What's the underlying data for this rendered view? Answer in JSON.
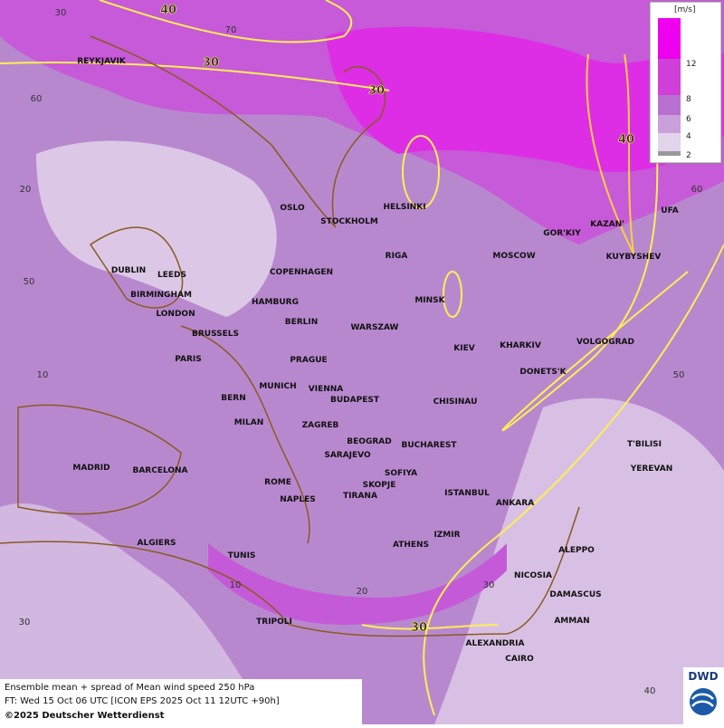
{
  "map": {
    "cities": [
      "REYKJAVIK",
      "OSLO",
      "STOCKHOLM",
      "HELSINKI",
      "DUBLIN",
      "LEEDS",
      "BIRMINGHAM",
      "LONDON",
      "COPENHAGEN",
      "HAMBURG",
      "RIGA",
      "MINSK",
      "MOSCOW",
      "GOR'KIY",
      "KAZAN'",
      "UFA",
      "KUYBYSHEV",
      "BERLIN",
      "WARSZAW",
      "BRUSSELS",
      "PARIS",
      "PRAGUE",
      "KIEV",
      "KHARKIV",
      "VOLGOGRAD",
      "DONETS'K",
      "MUNICH",
      "VIENNA",
      "BERN",
      "BUDAPEST",
      "CHISINAU",
      "MILAN",
      "ZAGREB",
      "BEOGRAD",
      "BUCHAREST",
      "T'BILISI",
      "SARAJEVO",
      "MADRID",
      "BARCELONA",
      "ROME",
      "SOFIYA",
      "YEREVAN",
      "SKOPJE",
      "NAPLES",
      "TIRANA",
      "ISTANBUL",
      "ANKARA",
      "ALGIERS",
      "ATHENS",
      "IZMIR",
      "ALEPPO",
      "TUNIS",
      "NICOSIA",
      "DAMASCUS",
      "AMMAN",
      "TRIPOLI",
      "ALEXANDRIA",
      "CAIRO"
    ],
    "contour_labels": [
      "40",
      "30",
      "30",
      "40",
      "30"
    ],
    "graticule_labels": [
      "30",
      "70",
      "60",
      "20",
      "50",
      "10",
      "60",
      "50",
      "30",
      "10",
      "20",
      "30",
      "40"
    ]
  },
  "legend": {
    "unit": "[m/s]",
    "labels": [
      "12",
      "8",
      "6",
      "4",
      "2"
    ]
  },
  "footer": {
    "line1": "Ensemble mean + spread of Mean wind speed 250 hPa",
    "line2": "FT: Wed 15 Oct 06 UTC [ICON EPS 2025 Oct 11 12UTC +90h]",
    "line3": "©2025 Deutscher Wetterdienst"
  },
  "logo": "DWD"
}
